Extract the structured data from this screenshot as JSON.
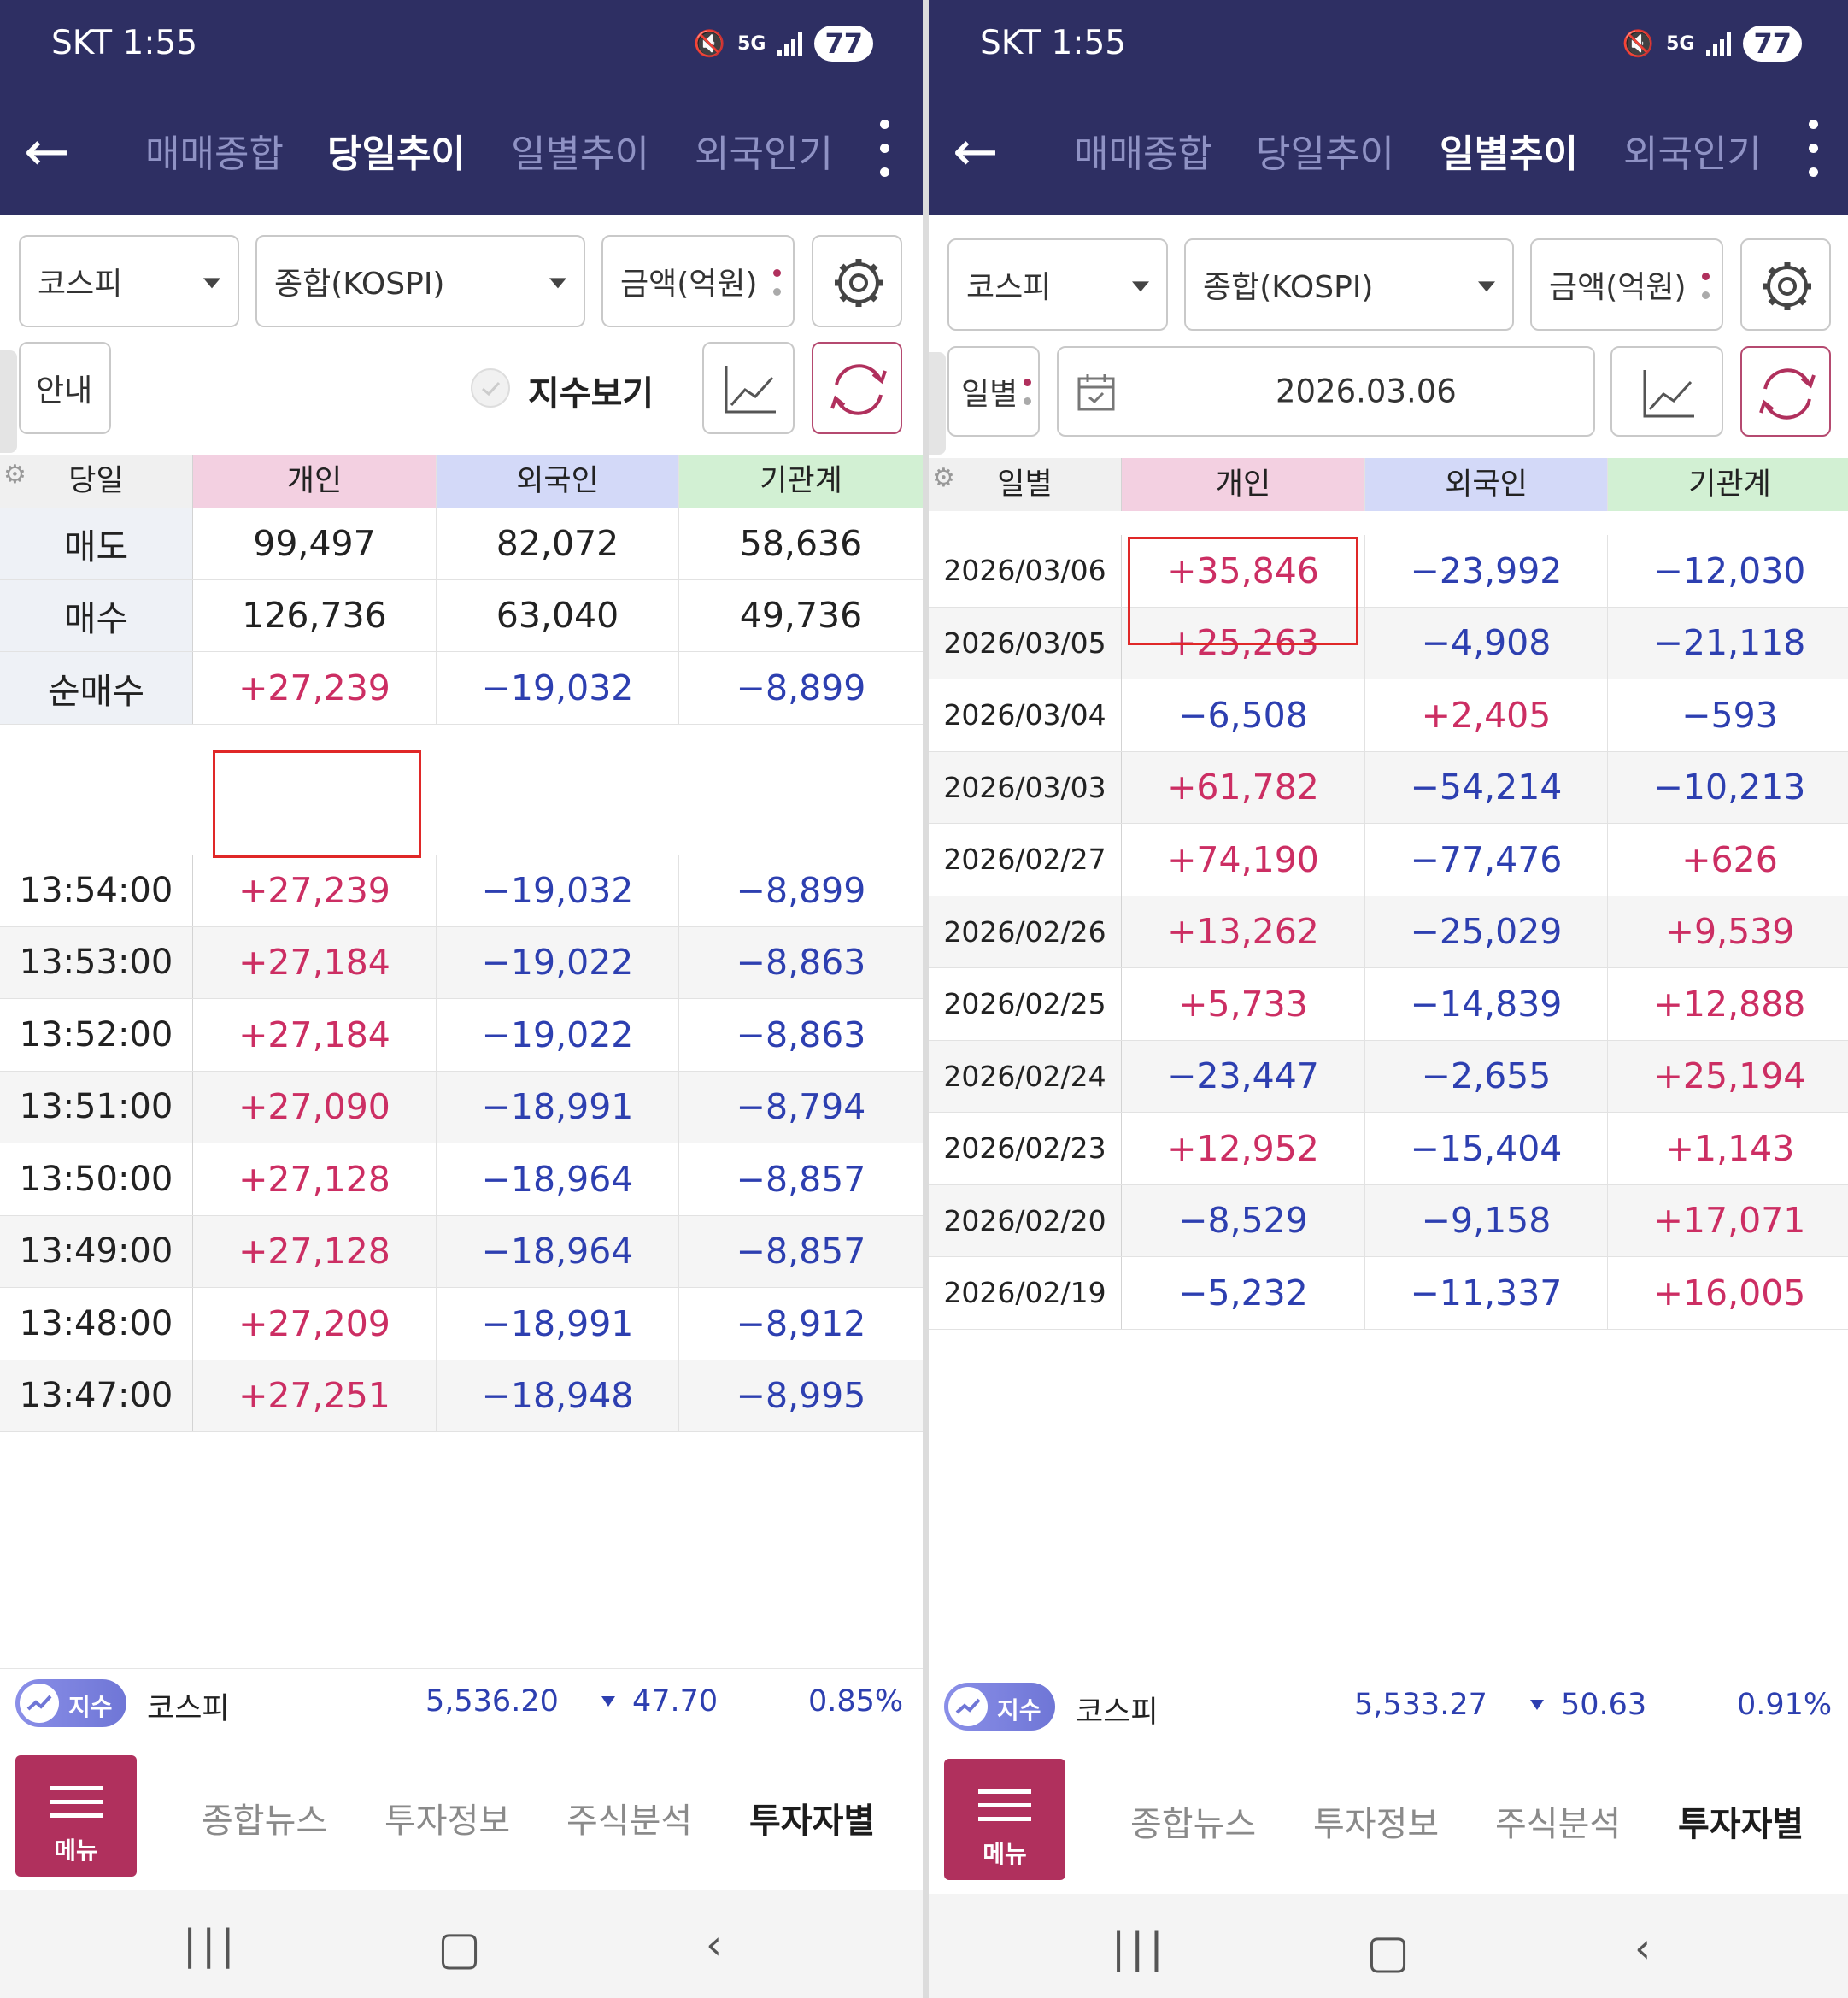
{
  "left": {
    "status": {
      "carrier": "SKT 1:55",
      "net": "5G",
      "battery": "77"
    },
    "tabs": [
      "매매종합",
      "당일추이",
      "일별추이",
      "외국인기"
    ],
    "active_tab": 1,
    "market_select": "코스피",
    "index_select": "종합(KOSPI)",
    "unit_select": "금액(억원)",
    "info_button": "안내",
    "index_view_label": "지수보기",
    "headers": [
      "당일",
      "개인",
      "외국인",
      "기관계"
    ],
    "summary_rows": [
      [
        "매도",
        "99,497",
        "82,072",
        "58,636"
      ],
      [
        "매수",
        "126,736",
        "63,040",
        "49,736"
      ],
      [
        "순매수",
        "+27,239",
        "−19,032",
        "−8,899"
      ]
    ],
    "rows": [
      [
        "13:54:00",
        "+27,239",
        "−19,032",
        "−8,899"
      ],
      [
        "13:53:00",
        "+27,184",
        "−19,022",
        "−8,863"
      ],
      [
        "13:52:00",
        "+27,184",
        "−19,022",
        "−8,863"
      ],
      [
        "13:51:00",
        "+27,090",
        "−18,991",
        "−8,794"
      ],
      [
        "13:50:00",
        "+27,128",
        "−18,964",
        "−8,857"
      ],
      [
        "13:49:00",
        "+27,128",
        "−18,964",
        "−8,857"
      ],
      [
        "13:48:00",
        "+27,209",
        "−18,991",
        "−8,912"
      ],
      [
        "13:47:00",
        "+27,251",
        "−18,948",
        "−8,995"
      ]
    ],
    "ticker": {
      "badge": "지수",
      "name": "코스피",
      "value": "5,536.20",
      "change": "47.70",
      "pct": "0.85%"
    }
  },
  "right": {
    "status": {
      "carrier": "SKT 1:55",
      "net": "5G",
      "battery": "77"
    },
    "tabs": [
      "매매종합",
      "당일추이",
      "일별추이",
      "외국인기"
    ],
    "active_tab": 2,
    "market_select": "코스피",
    "index_select": "종합(KOSPI)",
    "unit_select": "금액(억원)",
    "period_select": "일별",
    "date_value": "2026.03.06",
    "headers": [
      "일별",
      "개인",
      "외국인",
      "기관계"
    ],
    "rows": [
      [
        "2026/03/06",
        "+35,846",
        "−23,992",
        "−12,030"
      ],
      [
        "2026/03/05",
        "+25,263",
        "−4,908",
        "−21,118"
      ],
      [
        "2026/03/04",
        "−6,508",
        "+2,405",
        "−593"
      ],
      [
        "2026/03/03",
        "+61,782",
        "−54,214",
        "−10,213"
      ],
      [
        "2026/02/27",
        "+74,190",
        "−77,476",
        "+626"
      ],
      [
        "2026/02/26",
        "+13,262",
        "−25,029",
        "+9,539"
      ],
      [
        "2026/02/25",
        "+5,733",
        "−14,839",
        "+12,888"
      ],
      [
        "2026/02/24",
        "−23,447",
        "−2,655",
        "+25,194"
      ],
      [
        "2026/02/23",
        "+12,952",
        "−15,404",
        "+1,143"
      ],
      [
        "2026/02/20",
        "−8,529",
        "−9,158",
        "+17,071"
      ],
      [
        "2026/02/19",
        "−5,232",
        "−11,337",
        "+16,005"
      ]
    ],
    "ticker": {
      "badge": "지수",
      "name": "코스피",
      "value": "5,533.27",
      "change": "50.63",
      "pct": "0.91%"
    }
  },
  "bottom_nav": {
    "menu": "메뉴",
    "items": [
      "종합뉴스",
      "투자정보",
      "주식분석",
      "투자자별"
    ]
  },
  "colors": {
    "header_bg": "#2e2f63",
    "positive": "#cc2e63",
    "negative": "#2d3fb0",
    "col_individual": "#f3d0e1",
    "col_foreign": "#d3d9f8",
    "col_institution": "#d2f0d3",
    "menu_bg": "#b0305d"
  }
}
